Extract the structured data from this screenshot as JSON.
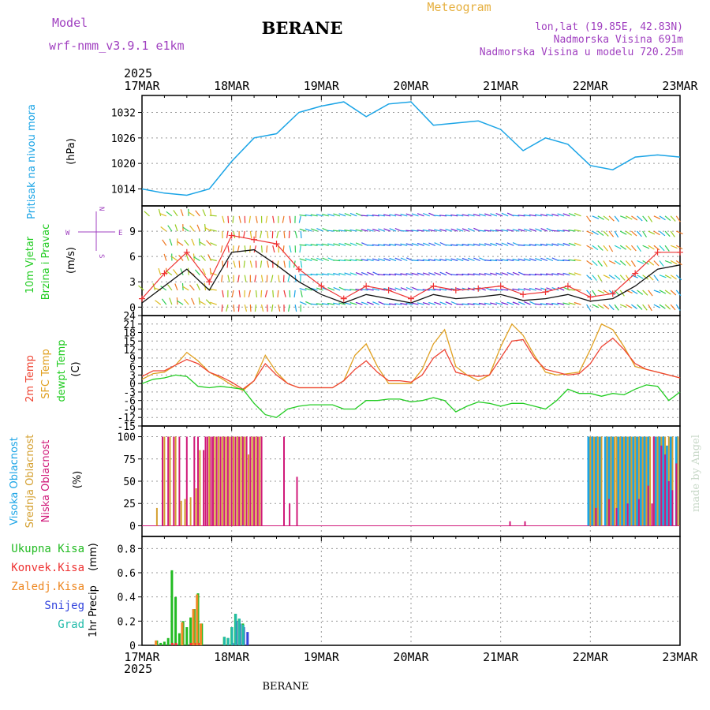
{
  "header": {
    "model_label": "Model",
    "model_name": "wrf-nmm_v3.9.1 e1km",
    "title": "BERANE",
    "product": "Meteogram",
    "lonlat": "lon,lat (19.85E, 42.83N)",
    "elevation": "Nadmorska Visina 691m",
    "model_elevation": "Nadmorska Visina u modelu 720.25m",
    "footer_station": "BERANE",
    "watermark": "made by Angel"
  },
  "colors": {
    "pressure": "#1aa4e6",
    "temp2m": "#ee4433",
    "sfc_temp": "#e0a020",
    "dewpt": "#22cc22",
    "high_cloud": "#1aa4e6",
    "mid_cloud": "#d4a030",
    "low_cloud": "#d01a7a",
    "total_precip": "#22bb22",
    "conv_precip": "#ee3333",
    "frozen_precip": "#ee8822",
    "snow": "#3344dd",
    "hail": "#22bbaa",
    "wind_speed": "#111111",
    "wind_gust": "#ee3333",
    "header_purple": "#a040c0",
    "header_gold": "#e6b040"
  },
  "time_axis": {
    "year_label": "2025",
    "ticks": [
      "17MAR",
      "18MAR",
      "19MAR",
      "20MAR",
      "21MAR",
      "22MAR",
      "23MAR"
    ]
  },
  "panels": {
    "pressure": {
      "ylabel_color": "Pritisak na nivou mora",
      "unit": "(hPa)",
      "ticks": [
        "1014",
        "1020",
        "1026",
        "1032"
      ]
    },
    "wind": {
      "ylabel_color1": "10m Vjetar",
      "ylabel_color2": "Brzina i Pravac",
      "unit": "(m/s)",
      "ticks": [
        "0",
        "3",
        "6",
        "9"
      ],
      "compass_n": "N",
      "compass_w": "W",
      "compass_e": "E",
      "compass_s": "S"
    },
    "temperature": {
      "ylabel1": "2m Temp",
      "ylabel2": "SFC Temp",
      "ylabel3": "dewpt Temp",
      "unit": "(C)",
      "ticks": [
        "-15",
        "-12",
        "-9",
        "-6",
        "-3",
        "0",
        "3",
        "6",
        "9",
        "12",
        "15",
        "18",
        "21",
        "24"
      ]
    },
    "cloud": {
      "ylabel1": "Visoka Oblacnost",
      "ylabel2": "Srednja Oblacnost",
      "ylabel3": "Niska Oblacnost",
      "unit": "(%)",
      "ticks": [
        "0",
        "25",
        "50",
        "75",
        "100"
      ]
    },
    "precip": {
      "legend": [
        "Ukupna Kisa",
        "Konvek.Kisa",
        "Zaledj.Kisa",
        "Snijeg",
        "Grad"
      ],
      "ylabel": "1hr Precip",
      "unit": "(mm)",
      "ticks": [
        "0",
        "0.2",
        "0.4",
        "0.6",
        "0.8"
      ]
    }
  },
  "chart_data": [
    {
      "type": "line",
      "title": "",
      "ylabel": "Pritisak na nivou mora (hPa)",
      "ylim": [
        1010,
        1036
      ],
      "x_hours": [
        0,
        6,
        12,
        18,
        24,
        30,
        36,
        42,
        48,
        54,
        60,
        66,
        72,
        78,
        84,
        90,
        96,
        102,
        108,
        114,
        120,
        126,
        132,
        138,
        144
      ],
      "series": [
        {
          "values": [
            1014,
            1013,
            1012.5,
            1014,
            1020.5,
            1026,
            1027,
            1032,
            1033.5,
            1034.5,
            1031,
            1034,
            1034.5,
            1029,
            1029.5,
            1030,
            1028,
            1023,
            1026,
            1024.5,
            1019.5,
            1018.5,
            1021.5,
            1022,
            1021.5
          ]
        }
      ]
    },
    {
      "type": "line",
      "title": "",
      "ylabel": "10m Vjetar Brzina i Pravac (m/s)",
      "ylim": [
        -1,
        12
      ],
      "x_hours": [
        0,
        6,
        12,
        18,
        24,
        30,
        36,
        42,
        48,
        54,
        60,
        66,
        72,
        78,
        84,
        90,
        96,
        102,
        108,
        114,
        120,
        126,
        132,
        138,
        144
      ],
      "series": [
        {
          "name": "speed",
          "values": [
            0.5,
            2.5,
            4.5,
            2.0,
            6.5,
            6.8,
            5.0,
            3.0,
            1.5,
            0.5,
            1.5,
            1.0,
            0.5,
            1.5,
            1.0,
            1.2,
            1.5,
            0.8,
            1.0,
            1.5,
            0.7,
            1.0,
            2.5,
            4.5,
            5.0
          ]
        },
        {
          "name": "gust",
          "values": [
            1.0,
            4.0,
            6.5,
            3.0,
            8.5,
            8.0,
            7.5,
            4.5,
            2.5,
            1.0,
            2.5,
            2.0,
            1.0,
            2.5,
            2.0,
            2.2,
            2.5,
            1.5,
            1.8,
            2.5,
            1.2,
            1.6,
            4.0,
            6.5,
            6.5
          ]
        }
      ]
    },
    {
      "type": "line",
      "title": "",
      "ylabel": "2m Temp / SFC Temp / dewpt Temp (C)",
      "ylim": [
        -15,
        24
      ],
      "x_hours": [
        0,
        3,
        6,
        9,
        12,
        15,
        18,
        21,
        24,
        27,
        30,
        33,
        36,
        39,
        42,
        45,
        48,
        51,
        54,
        57,
        60,
        63,
        66,
        69,
        72,
        75,
        78,
        81,
        84,
        87,
        90,
        93,
        96,
        99,
        102,
        105,
        108,
        111,
        114,
        117,
        120,
        123,
        126,
        129,
        132,
        135,
        138,
        141,
        144
      ],
      "series": [
        {
          "name": "2m Temp",
          "values": [
            2.5,
            4.5,
            4.5,
            6.5,
            8.5,
            7,
            4,
            2.5,
            0.5,
            -2,
            1,
            7,
            3,
            0,
            -1.5,
            -1.5,
            -1.5,
            -1.5,
            1,
            5,
            8,
            4,
            1,
            1,
            0.5,
            3,
            9,
            12,
            4,
            3,
            2.5,
            3,
            9,
            15,
            15.5,
            9,
            5,
            4,
            3,
            3.5,
            7,
            13,
            16,
            12,
            7,
            5,
            4,
            3,
            2
          ]
        },
        {
          "name": "SFC Temp",
          "values": [
            1.5,
            3.5,
            4,
            6.5,
            11,
            8,
            4,
            2,
            -0.5,
            -2.5,
            1,
            10,
            4,
            0,
            -1.5,
            -1.5,
            -1.5,
            -1.5,
            1,
            10,
            14,
            6,
            0,
            0,
            0,
            5,
            14,
            19,
            6,
            3,
            1,
            3,
            13,
            21,
            17,
            10,
            4,
            3,
            3.5,
            4,
            12,
            21,
            19,
            13,
            6,
            5,
            4,
            3,
            2
          ]
        },
        {
          "name": "dewpt Temp",
          "values": [
            0,
            1.5,
            2,
            3,
            2.5,
            -1,
            -1.5,
            -1,
            -1.5,
            -2,
            -7,
            -11,
            -12,
            -9,
            -8,
            -7.5,
            -7.5,
            -7.5,
            -9,
            -9,
            -6,
            -6,
            -5.5,
            -5.5,
            -6.5,
            -6,
            -5,
            -6,
            -10,
            -8,
            -6.5,
            -7,
            -8,
            -7,
            -7,
            -8,
            -9,
            -6,
            -2,
            -3.5,
            -3.5,
            -4.5,
            -3.5,
            -4,
            -2,
            -0.5,
            -1,
            -6,
            -3
          ]
        }
      ]
    },
    {
      "type": "bar",
      "title": "",
      "ylabel": "Visoka / Srednja / Niska Oblacnost (%)",
      "ylim": [
        0,
        100
      ],
      "series": [
        {
          "name": "Visoka Oblacnost",
          "x_hours": [
            5,
            27,
            119.5,
            120.5,
            121.5,
            122.5,
            124,
            125,
            126,
            127.5,
            128.5,
            129.5,
            130.5,
            131.5,
            132.5,
            133.5,
            134.5,
            135.5,
            137.5,
            138.5,
            139.5,
            140.5,
            141.5,
            143
          ],
          "values": [
            0,
            0,
            100,
            100,
            100,
            100,
            100,
            100,
            100,
            100,
            100,
            100,
            100,
            100,
            100,
            100,
            100,
            100,
            100,
            100,
            100,
            90,
            100,
            100
          ]
        },
        {
          "name": "Srednja Oblacnost",
          "x_hours": [
            4,
            6,
            7.5,
            9,
            10.5,
            11.5,
            13,
            14.5,
            15.5,
            18,
            19.5,
            20.5,
            21.5,
            22.5,
            23.5,
            24.5,
            25.5,
            26.5,
            27.5,
            28.5,
            29.5,
            30.5,
            31.5,
            120,
            121,
            122,
            123,
            124.5,
            125.5,
            126.5,
            127,
            128,
            129,
            130,
            131,
            132,
            133,
            134,
            135,
            136,
            137,
            138,
            139,
            140,
            141,
            142,
            143.5
          ],
          "values": [
            20,
            100,
            100,
            100,
            28,
            30,
            32,
            42,
            85,
            100,
            100,
            100,
            100,
            100,
            100,
            100,
            100,
            100,
            100,
            80,
            100,
            100,
            100,
            100,
            100,
            100,
            100,
            100,
            100,
            100,
            100,
            100,
            100,
            100,
            100,
            100,
            100,
            100,
            100,
            100,
            100,
            100,
            100,
            100,
            100,
            100,
            100
          ]
        },
        {
          "name": "Niska Oblacnost",
          "x_hours": [
            5.5,
            7,
            8.5,
            10,
            12,
            14,
            15,
            16.5,
            17,
            17.5,
            18.5,
            19,
            20,
            21,
            22,
            23,
            24,
            25,
            26,
            27,
            28,
            29,
            30,
            31,
            32,
            38,
            39.5,
            41.5,
            98.5,
            102.5,
            121.5,
            125,
            127,
            130,
            133,
            135.5,
            136.5,
            137,
            139,
            140,
            141,
            142,
            143
          ],
          "values": [
            100,
            100,
            100,
            100,
            100,
            100,
            100,
            85,
            100,
            100,
            100,
            100,
            100,
            100,
            100,
            100,
            100,
            100,
            100,
            100,
            100,
            100,
            100,
            100,
            100,
            100,
            25,
            55,
            5,
            5,
            20,
            30,
            20,
            25,
            30,
            45,
            25,
            100,
            90,
            80,
            50,
            40,
            70
          ]
        }
      ]
    },
    {
      "type": "bar",
      "title": "",
      "ylabel": "1hr Precip (mm)",
      "ylim": [
        0,
        0.9
      ],
      "series": [
        {
          "name": "Ukupna Kisa",
          "x_hours": [
            4,
            5,
            6,
            7,
            8,
            9,
            10,
            11,
            12,
            13,
            14,
            15,
            16,
            22,
            23,
            24,
            25,
            26,
            27
          ],
          "values": [
            0.04,
            0.02,
            0.03,
            0.06,
            0.62,
            0.4,
            0.1,
            0.2,
            0.15,
            0.23,
            0.3,
            0.43,
            0.18,
            0.07,
            0.06,
            0.15,
            0.26,
            0.22,
            0.18
          ]
        },
        {
          "name": "Konvek.Kisa",
          "x_hours": [
            8,
            9,
            13,
            14,
            15
          ],
          "values": [
            0.02,
            0.02,
            0.02,
            0.02,
            0.02
          ]
        },
        {
          "name": "Zaledj.Kisa",
          "x_hours": [
            4,
            11,
            14,
            15,
            16
          ],
          "values": [
            0.04,
            0.19,
            0.3,
            0.42,
            0.18
          ]
        },
        {
          "name": "Snijeg",
          "x_hours": [
            24,
            25,
            26,
            27,
            28
          ],
          "values": [
            0.02,
            0.2,
            0.18,
            0.15,
            0.11
          ]
        },
        {
          "name": "Grad",
          "x_hours": [
            22,
            23,
            24,
            25,
            26,
            27
          ],
          "values": [
            0.07,
            0.06,
            0.15,
            0.26,
            0.22,
            0.17
          ]
        }
      ]
    }
  ]
}
